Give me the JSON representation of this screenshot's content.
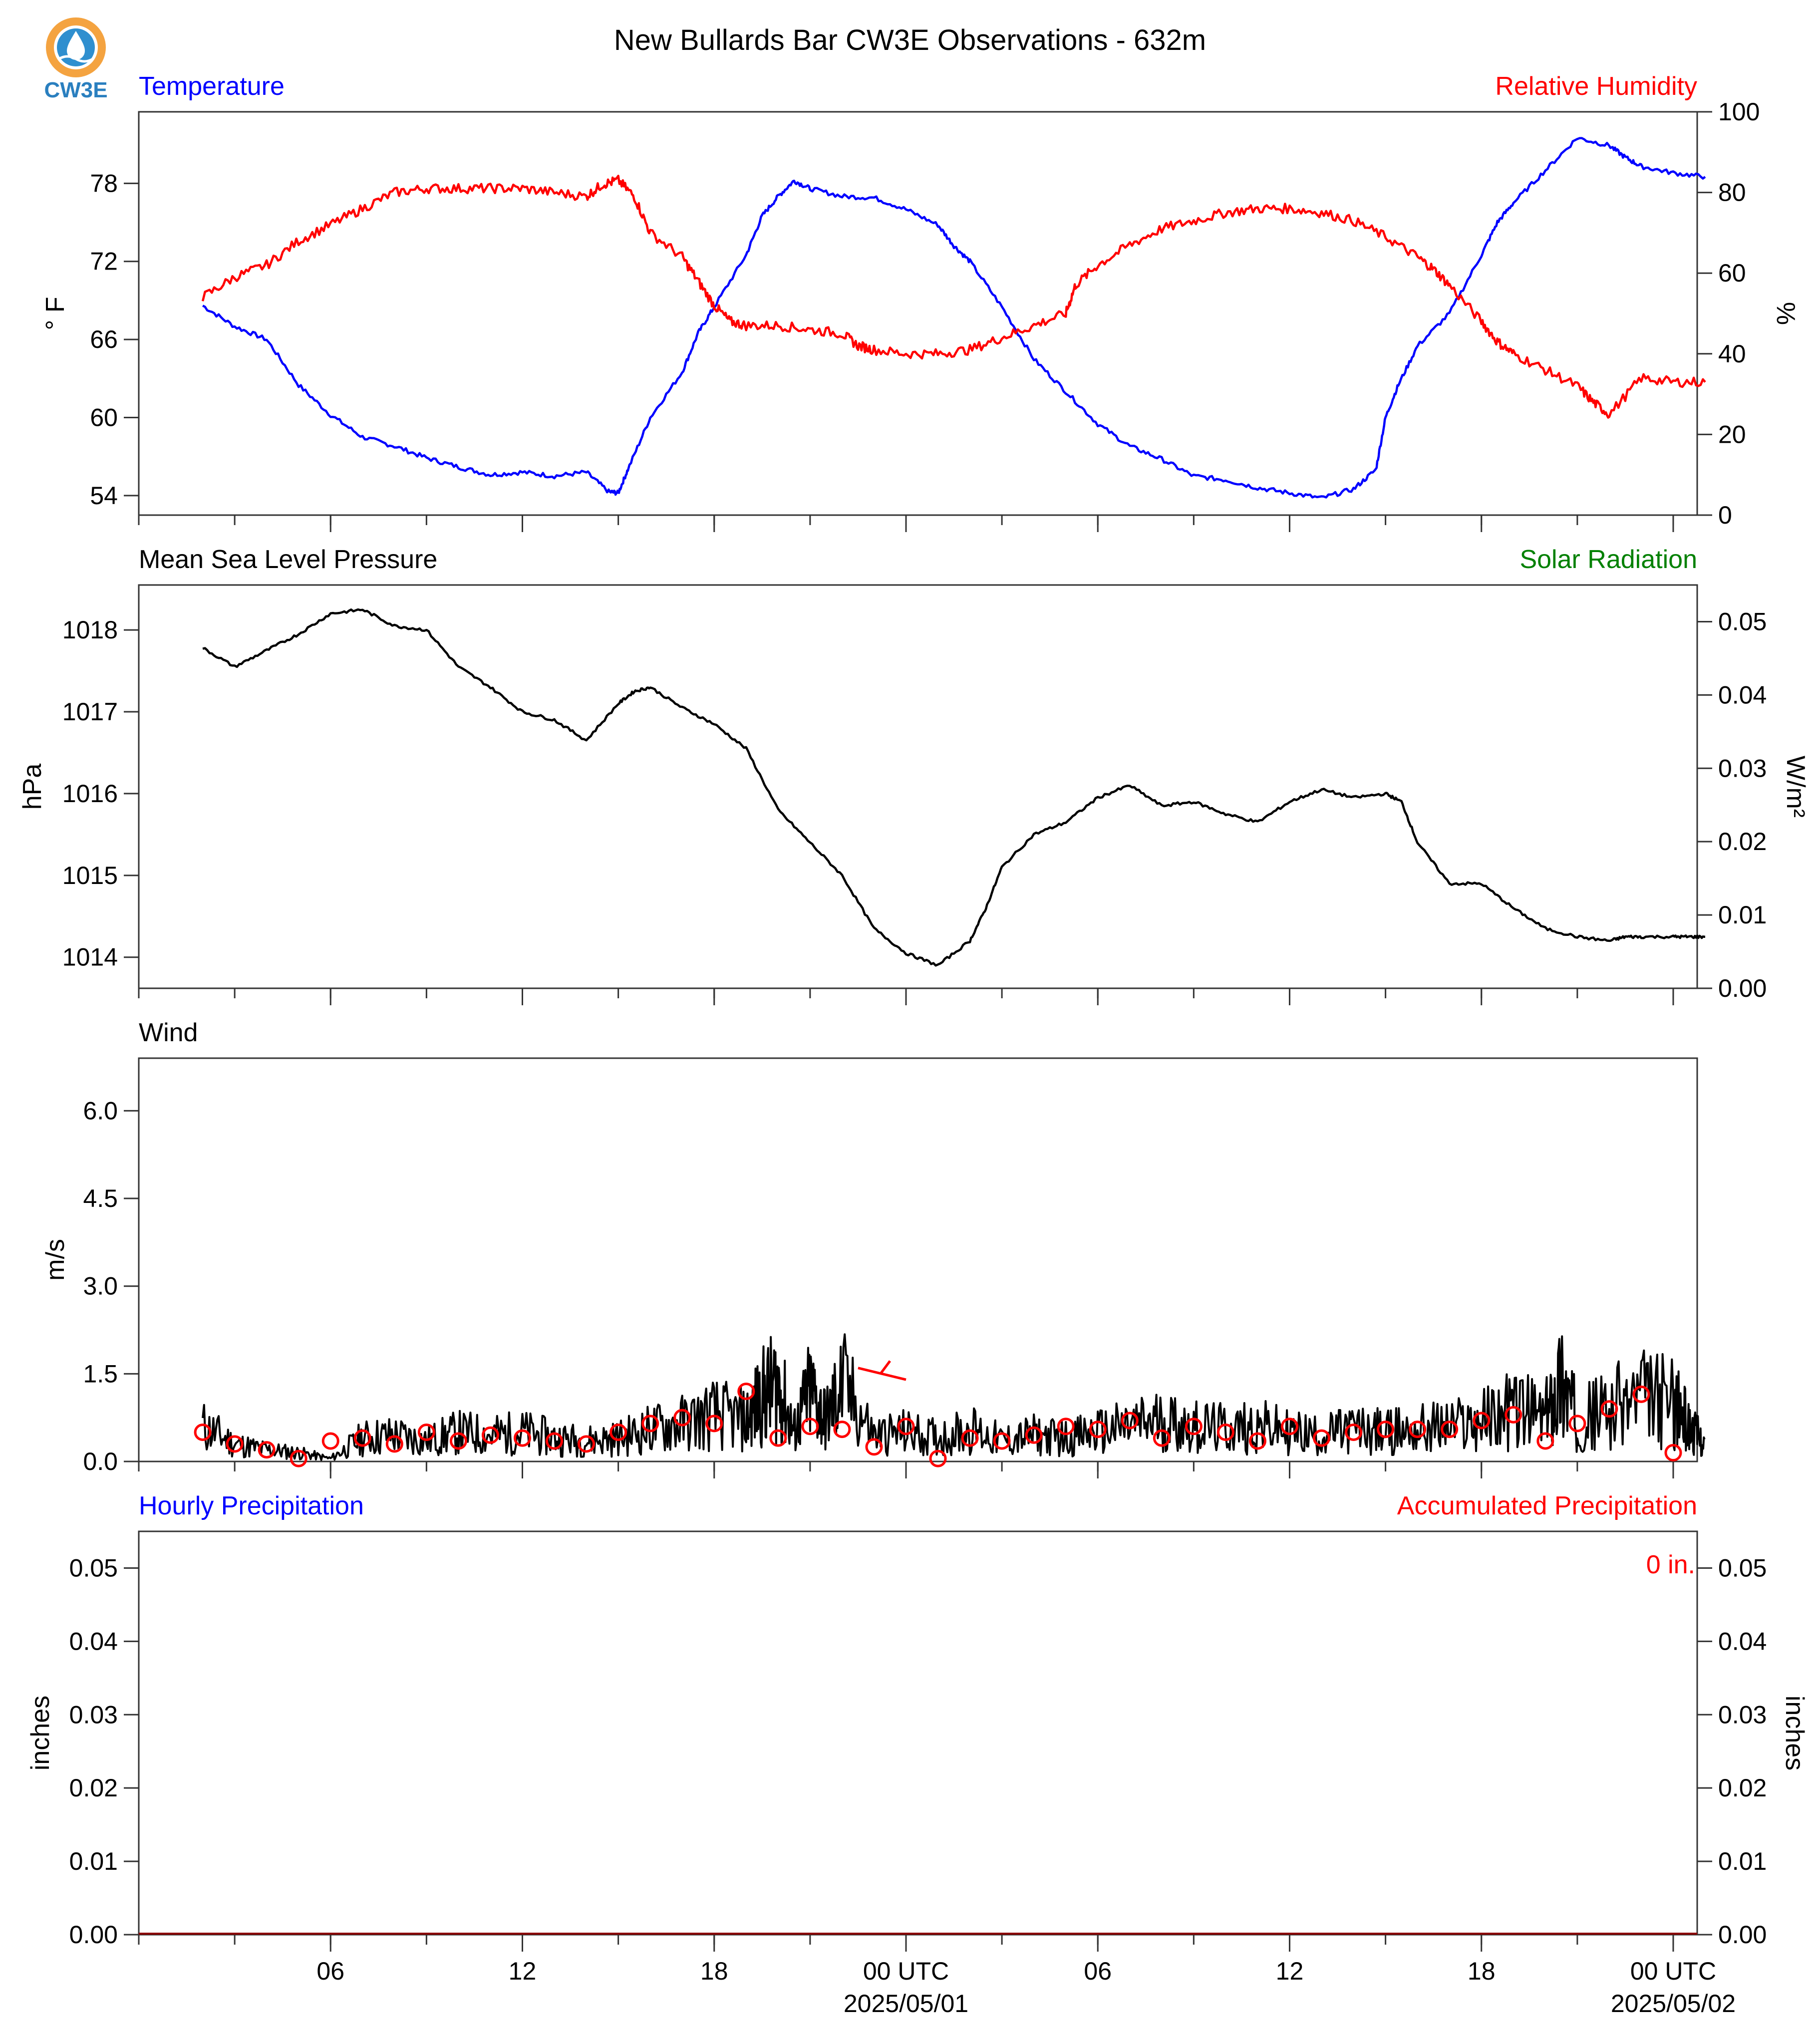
{
  "page": {
    "title": "New Bullards Bar CW3E Observations - 632m"
  },
  "logo": {
    "text": "CW3E",
    "colors": {
      "ring": "#f4a340",
      "drop": "#2f8fcf",
      "text": "#2a7fbf"
    }
  },
  "colors": {
    "blue": "#0000ff",
    "red": "#ff0000",
    "black": "#000000",
    "green": "#008000"
  },
  "x_axis": {
    "tick_labels": [
      "06",
      "12",
      "18",
      "00 UTC",
      "06",
      "12",
      "18",
      "00 UTC"
    ],
    "date_labels": [
      "2025/05/01",
      "2025/05/02"
    ]
  },
  "chart_data": [
    {
      "type": "line",
      "left_label": "Temperature",
      "right_label": "Relative Humidity",
      "ylabel": "° F",
      "ylabel_right": "%",
      "ylim": [
        52.5,
        83.5
      ],
      "ylim_right": [
        0,
        100
      ],
      "y_ticks": [
        "54",
        "60",
        "66",
        "72",
        "78"
      ],
      "y_ticks_right": [
        "0",
        "20",
        "40",
        "60",
        "80",
        "100"
      ],
      "x_unit": "hours",
      "xlim": [
        0,
        47
      ],
      "series": [
        {
          "name": "Temperature",
          "axis": "left",
          "color": "#0000ff",
          "x": [
            0,
            1,
            2,
            3,
            4,
            5,
            6,
            7,
            8,
            9,
            10,
            11,
            12,
            12.7,
            13,
            13.3,
            14,
            15,
            15.5,
            16,
            17,
            17.5,
            18,
            18.5,
            19,
            20,
            21,
            22,
            23,
            23.5,
            24,
            25,
            26,
            27,
            28,
            29,
            30,
            31,
            32,
            33,
            34,
            35,
            36,
            36.7,
            37,
            37.4,
            38,
            39,
            40,
            40.5,
            41,
            42,
            43,
            44,
            44.5,
            45,
            46,
            47
          ],
          "y": [
            68.6,
            67.0,
            66.0,
            62.5,
            60.2,
            58.5,
            57.8,
            56.9,
            56.2,
            55.6,
            55.8,
            55.5,
            55.8,
            54.3,
            54.2,
            56.0,
            60.0,
            63.5,
            66.5,
            68.5,
            72.5,
            75.5,
            77.0,
            78.2,
            77.6,
            77.0,
            76.9,
            76.0,
            74.8,
            73.2,
            72.0,
            68.5,
            64.5,
            62.0,
            59.5,
            57.8,
            56.8,
            55.5,
            55.2,
            54.6,
            54.2,
            53.8,
            54.5,
            56.0,
            60.0,
            62.5,
            65.5,
            68.0,
            72.5,
            75.0,
            76.5,
            79.0,
            81.5,
            80.9,
            80.0,
            79.3,
            78.8,
            78.5
          ]
        },
        {
          "name": "Relative Humidity",
          "axis": "right",
          "color": "#ff0000",
          "x": [
            0,
            1,
            2,
            3,
            4,
            5,
            6,
            7,
            8,
            9,
            10,
            11,
            12,
            12.5,
            13,
            13.5,
            14,
            15,
            15.5,
            16,
            16.5,
            17,
            18,
            19,
            20,
            20.5,
            21,
            22,
            23,
            24,
            25,
            26,
            27,
            27.3,
            28,
            29,
            30,
            31,
            32,
            33,
            34,
            35,
            36,
            37,
            38,
            38.5,
            39,
            40,
            40.5,
            41,
            42,
            43,
            43.5,
            44,
            45,
            46,
            47
          ],
          "y": [
            54,
            59,
            62,
            68,
            72,
            76,
            80,
            81,
            81,
            81,
            81,
            80,
            79,
            82,
            83,
            79,
            70,
            64,
            58,
            52,
            48,
            47,
            47,
            46,
            45,
            42,
            41,
            40,
            40,
            41,
            44,
            47,
            50,
            57,
            62,
            67,
            71,
            73,
            75,
            76,
            76,
            75,
            73,
            69,
            64,
            61,
            57,
            48,
            43,
            40,
            36,
            32,
            28,
            25,
            34,
            33,
            33
          ]
        }
      ]
    },
    {
      "type": "line",
      "left_label": "Mean Sea Level Pressure",
      "right_label": "Solar Radiation",
      "ylabel": "hPa",
      "ylabel_right": "W/m²",
      "ylim": [
        13.62,
        18.55
      ],
      "ylim_right": [
        0,
        0.055
      ],
      "y_ticks": [
        "1014",
        "1015",
        "1016",
        "1017",
        "1018"
      ],
      "y_ticks_right": [
        "0.00",
        "0.01",
        "0.02",
        "0.03",
        "0.04",
        "0.05"
      ],
      "y_unit_offset": 1000,
      "x_unit": "hours",
      "xlim": [
        0,
        47
      ],
      "series": [
        {
          "name": "Mean Sea Level Pressure",
          "axis": "left",
          "color": "#000000",
          "x": [
            0,
            1,
            2,
            3,
            4,
            5,
            6,
            7,
            8,
            9,
            10,
            11,
            12,
            13,
            13.5,
            14,
            15,
            16,
            17,
            18,
            19,
            20,
            21,
            22,
            23,
            24,
            24.5,
            25,
            26,
            27,
            28,
            29,
            30,
            31,
            32,
            33,
            34,
            35,
            36,
            37,
            37.5,
            38,
            39,
            40,
            41,
            42,
            43,
            44,
            44.5,
            45,
            46,
            46.5,
            47
          ],
          "y": [
            17.78,
            17.55,
            17.75,
            17.95,
            18.2,
            18.25,
            18.05,
            18.0,
            17.55,
            17.3,
            17.0,
            16.9,
            16.65,
            17.1,
            17.25,
            17.3,
            17.05,
            16.85,
            16.55,
            15.8,
            15.4,
            15.0,
            14.35,
            14.05,
            13.9,
            14.2,
            14.6,
            15.1,
            15.5,
            15.65,
            15.95,
            16.1,
            15.85,
            15.9,
            15.75,
            15.65,
            15.9,
            16.05,
            15.95,
            16.0,
            15.9,
            15.4,
            14.9,
            14.9,
            14.6,
            14.35,
            14.25,
            14.2,
            14.25,
            14.25,
            14.25,
            14.25,
            14.25
          ]
        }
      ]
    },
    {
      "type": "line",
      "left_label": "Wind",
      "ylabel": "m/s",
      "ylim": [
        0,
        6.9
      ],
      "y_ticks": [
        "0.0",
        "1.5",
        "3.0",
        "4.5",
        "6.0"
      ],
      "x_unit": "hours",
      "xlim": [
        0,
        47
      ],
      "series": [
        {
          "name": "Wind speed",
          "axis": "left",
          "color": "#000000",
          "x": [
            0,
            1,
            2,
            3,
            4,
            5,
            6,
            7,
            8,
            9,
            10,
            11,
            12,
            13,
            14,
            15,
            16,
            17,
            17.5,
            18,
            18.5,
            19,
            19.5,
            20,
            21,
            22,
            23,
            24,
            25,
            26,
            27,
            28,
            29,
            30,
            31,
            32,
            33,
            34,
            35,
            36,
            37,
            38,
            39,
            40,
            41,
            42,
            42.5,
            43,
            44,
            45,
            46,
            46.5,
            47
          ],
          "y": [
            0.6,
            0.3,
            0.2,
            0.15,
            0.05,
            0.4,
            0.45,
            0.35,
            0.5,
            0.45,
            0.5,
            0.4,
            0.35,
            0.4,
            0.55,
            0.65,
            0.8,
            0.7,
            1.1,
            1.3,
            0.5,
            1.2,
            0.7,
            1.3,
            0.45,
            0.5,
            0.4,
            0.55,
            0.35,
            0.45,
            0.4,
            0.5,
            0.6,
            0.7,
            0.6,
            0.55,
            0.6,
            0.5,
            0.45,
            0.55,
            0.5,
            0.55,
            0.6,
            0.7,
            0.9,
            0.75,
            1.4,
            0.7,
            0.9,
            1.1,
            1.0,
            0.6,
            0.3
          ]
        }
      ],
      "wind_markers": {
        "color": "#ff0000",
        "x": [
          0,
          1,
          2,
          3,
          4,
          5,
          6,
          7,
          8,
          9,
          10,
          11,
          12,
          13,
          14,
          15,
          16,
          17,
          18,
          19,
          20,
          21,
          22,
          23,
          24,
          25,
          26,
          27,
          28,
          29,
          30,
          31,
          32,
          33,
          34,
          35,
          36,
          37,
          38,
          39,
          40,
          41,
          42,
          43,
          44,
          45,
          46,
          47
        ],
        "y": [
          0.5,
          0.3,
          0.2,
          0.05,
          0.35,
          0.4,
          0.3,
          0.5,
          0.35,
          0.45,
          0.4,
          0.35,
          0.3,
          0.5,
          0.65,
          0.75,
          0.65,
          1.2,
          0.4,
          0.6,
          0.55,
          0.25,
          0.6,
          0.05,
          0.4,
          0.35,
          0.45,
          0.6,
          0.55,
          0.7,
          0.4,
          0.6,
          0.5,
          0.35,
          0.6,
          0.4,
          0.5,
          0.55,
          0.55,
          0.55,
          0.7,
          0.8,
          0.35,
          0.65,
          0.9,
          1.15,
          0.15,
          0.1
        ]
      }
    },
    {
      "type": "bar",
      "left_label": "Hourly Precipitation",
      "right_label": "Accumulated Precipitation",
      "ylabel": "inches",
      "ylabel_right": "inches",
      "ylim": [
        0,
        0.055
      ],
      "ylim_right": [
        0,
        0.055
      ],
      "y_ticks": [
        "0.00",
        "0.01",
        "0.02",
        "0.03",
        "0.04",
        "0.05"
      ],
      "y_ticks_right": [
        "0.00",
        "0.01",
        "0.02",
        "0.03",
        "0.04",
        "0.05"
      ],
      "annotation": "0 in.",
      "xlim": [
        0,
        47
      ],
      "series": [
        {
          "name": "Hourly Precipitation",
          "color": "#0000ff",
          "values": [
            0
          ]
        },
        {
          "name": "Accumulated Precipitation",
          "color": "#ff0000",
          "values": [
            0
          ]
        }
      ]
    }
  ]
}
